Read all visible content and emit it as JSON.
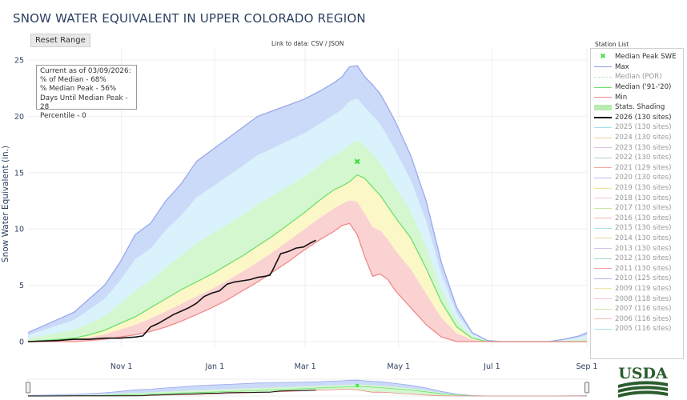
{
  "title": "SNOW WATER EQUIVALENT IN UPPER COLORADO REGION",
  "reset_button": "Reset Range",
  "data_link": "Link to data: CSV / JSON",
  "station_list_title": "Station List",
  "stats": {
    "line1": "Current as of 03/09/2026:",
    "line2": "% of Median - 68%",
    "line3": "% Median Peak - 56%",
    "line4": "Days Until Median Peak - 28",
    "line5": "Percentile - 0"
  },
  "logo_text": "USDA",
  "colors": {
    "max": "#9aa8ec",
    "median": "#6fe06f",
    "min": "#f08a8a",
    "current": "#111111",
    "median_peak": "#3ddc3d",
    "band_outer": "#cbdaf8",
    "band_blue_inner": "#d9f2fb",
    "band_green": "#d4f7d0",
    "band_yellow": "#fbf7c6",
    "band_red": "#fad2d2"
  },
  "legend": [
    {
      "label": "Median Peak SWE",
      "sym": "star",
      "color": "#3ddc3d",
      "dim": false
    },
    {
      "label": "Max",
      "sym": "line",
      "color": "#8c9ae8",
      "dim": false
    },
    {
      "label": "Median (POR)",
      "sym": "dash",
      "color": "#b9ecc0",
      "dim": true
    },
    {
      "label": "Median ('91-'20)",
      "sym": "line",
      "color": "#6fe06f",
      "dim": false
    },
    {
      "label": "Min",
      "sym": "line",
      "color": "#f08a8a",
      "dim": false
    },
    {
      "label": "Stats. Shading",
      "sym": "fill",
      "color": "#b8ecb0",
      "dim": false
    },
    {
      "label": "2026 (130 sites)",
      "sym": "line",
      "color": "#111111",
      "dim": false
    },
    {
      "label": "2025 (130 sites)",
      "sym": "line",
      "color": "#9fe3ef",
      "dim": true
    },
    {
      "label": "2024 (130 sites)",
      "sym": "line",
      "color": "#f4c89a",
      "dim": true
    },
    {
      "label": "2023 (130 sites)",
      "sym": "line",
      "color": "#d8c0ec",
      "dim": true
    },
    {
      "label": "2022 (130 sites)",
      "sym": "line",
      "color": "#a5dcb6",
      "dim": true
    },
    {
      "label": "2021 (129 sites)",
      "sym": "line",
      "color": "#f2a99d",
      "dim": true
    },
    {
      "label": "2020 (130 sites)",
      "sym": "line",
      "color": "#b8b9ef",
      "dim": true
    },
    {
      "label": "2019 (130 sites)",
      "sym": "line",
      "color": "#f5dfa0",
      "dim": true
    },
    {
      "label": "2018 (130 sites)",
      "sym": "line",
      "color": "#f4c0dc",
      "dim": true
    },
    {
      "label": "2017 (130 sites)",
      "sym": "line",
      "color": "#c6e7a2",
      "dim": true
    },
    {
      "label": "2016 (130 sites)",
      "sym": "line",
      "color": "#f7b9a6",
      "dim": true
    },
    {
      "label": "2015 (130 sites)",
      "sym": "line",
      "color": "#a9e2ef",
      "dim": true
    },
    {
      "label": "2014 (130 sites)",
      "sym": "line",
      "color": "#f2cd9a",
      "dim": true
    },
    {
      "label": "2013 (130 sites)",
      "sym": "line",
      "color": "#d4c1ea",
      "dim": true
    },
    {
      "label": "2012 (130 sites)",
      "sym": "line",
      "color": "#9fd9c4",
      "dim": true
    },
    {
      "label": "2011 (130 sites)",
      "sym": "line",
      "color": "#f0a39b",
      "dim": true
    },
    {
      "label": "2010 (125 sites)",
      "sym": "line",
      "color": "#b1b3ee",
      "dim": true
    },
    {
      "label": "2009 (119 sites)",
      "sym": "line",
      "color": "#f5e3a3",
      "dim": true
    },
    {
      "label": "2008 (118 sites)",
      "sym": "line",
      "color": "#f2bedb",
      "dim": true
    },
    {
      "label": "2007 (116 sites)",
      "sym": "line",
      "color": "#c8e8a4",
      "dim": true
    },
    {
      "label": "2006 (116 sites)",
      "sym": "line",
      "color": "#f6bba8",
      "dim": true
    },
    {
      "label": "2005 (116 sites)",
      "sym": "line",
      "color": "#a6def0",
      "dim": true
    }
  ],
  "chart_data": {
    "type": "area",
    "title": "SNOW WATER EQUIVALENT IN UPPER COLORADO REGION",
    "xlabel": "",
    "ylabel": "Snow Water Equivalent (in.)",
    "xlim": [
      -30,
      335
    ],
    "ylim": [
      -0.5,
      26
    ],
    "y_ticks": [
      0,
      5,
      10,
      15,
      20,
      25
    ],
    "x_ticks": [
      {
        "label": "Nov 1",
        "day": 31
      },
      {
        "label": "Jan 1",
        "day": 92
      },
      {
        "label": "Mar 1",
        "day": 151
      },
      {
        "label": "May 1",
        "day": 212
      },
      {
        "label": "Jul 1",
        "day": 273
      },
      {
        "label": "Sep 1",
        "day": 335
      }
    ],
    "grid": true,
    "legend_position": "right",
    "series": [
      {
        "name": "Max",
        "x": [
          -30,
          -20,
          -10,
          0,
          10,
          20,
          30,
          40,
          50,
          60,
          70,
          80,
          90,
          100,
          110,
          120,
          130,
          140,
          150,
          160,
          170,
          175,
          180,
          185,
          190,
          195,
          200,
          205,
          210,
          215,
          220,
          225,
          230,
          240,
          250,
          260,
          270,
          280,
          290,
          300,
          310,
          320,
          330,
          335
        ],
        "y": [
          0.8,
          1.4,
          2.0,
          2.6,
          3.8,
          5.0,
          7.0,
          9.5,
          10.5,
          12.5,
          14.0,
          16.0,
          17.0,
          18.0,
          19.0,
          20.0,
          20.5,
          21.0,
          21.5,
          22.2,
          23.0,
          23.5,
          24.4,
          24.5,
          23.5,
          22.8,
          22.0,
          20.8,
          19.5,
          18.0,
          16.5,
          14.5,
          12.5,
          7.0,
          3.0,
          0.8,
          0.1,
          0,
          0,
          0,
          0,
          0.2,
          0.5,
          0.8
        ]
      },
      {
        "name": "Median ('91-'20)",
        "x": [
          -30,
          -20,
          -10,
          0,
          10,
          20,
          30,
          40,
          50,
          60,
          70,
          80,
          90,
          100,
          110,
          120,
          130,
          140,
          150,
          160,
          170,
          175,
          180,
          185,
          190,
          195,
          200,
          205,
          210,
          220,
          230,
          240,
          250,
          260,
          270,
          280,
          300,
          335
        ],
        "y": [
          0,
          0.1,
          0.2,
          0.3,
          0.6,
          1.0,
          1.6,
          2.2,
          3.0,
          3.8,
          4.6,
          5.3,
          6.0,
          6.8,
          7.6,
          8.5,
          9.4,
          10.4,
          11.4,
          12.5,
          13.5,
          13.8,
          14.2,
          14.8,
          14.5,
          13.7,
          13.0,
          12.0,
          11.0,
          9.2,
          6.5,
          3.5,
          1.3,
          0.3,
          0,
          0,
          0,
          0
        ]
      },
      {
        "name": "Min",
        "x": [
          -30,
          -20,
          -10,
          0,
          10,
          20,
          30,
          40,
          50,
          60,
          70,
          80,
          90,
          100,
          110,
          120,
          130,
          140,
          150,
          160,
          170,
          175,
          180,
          185,
          190,
          195,
          200,
          205,
          210,
          220,
          230,
          240,
          250,
          260,
          270,
          335
        ],
        "y": [
          0,
          0,
          0,
          0,
          0.1,
          0.2,
          0.4,
          0.6,
          0.9,
          1.3,
          1.8,
          2.4,
          3.0,
          3.7,
          4.5,
          5.3,
          6.2,
          7.1,
          8.1,
          9.0,
          9.8,
          10.3,
          10.5,
          9.5,
          7.5,
          5.8,
          6.0,
          5.5,
          4.5,
          3.0,
          1.5,
          0.4,
          0,
          0,
          0,
          0
        ]
      },
      {
        "name": "2026 (130 sites)",
        "x": [
          -30,
          -20,
          -10,
          0,
          10,
          20,
          30,
          40,
          45,
          50,
          55,
          60,
          65,
          70,
          75,
          80,
          85,
          90,
          95,
          100,
          105,
          110,
          115,
          120,
          125,
          128,
          130,
          135,
          140,
          145,
          150,
          155,
          158
        ],
        "y": [
          0,
          0.05,
          0.1,
          0.2,
          0.2,
          0.3,
          0.3,
          0.4,
          0.5,
          1.3,
          1.6,
          2.0,
          2.4,
          2.7,
          3.0,
          3.4,
          4.0,
          4.3,
          4.5,
          5.1,
          5.3,
          5.4,
          5.5,
          5.7,
          5.8,
          5.9,
          6.4,
          7.8,
          8.0,
          8.3,
          8.4,
          8.8,
          9.0
        ]
      }
    ],
    "median_peak": {
      "x": 185,
      "y": 16.0,
      "label": "Median Peak SWE"
    }
  }
}
